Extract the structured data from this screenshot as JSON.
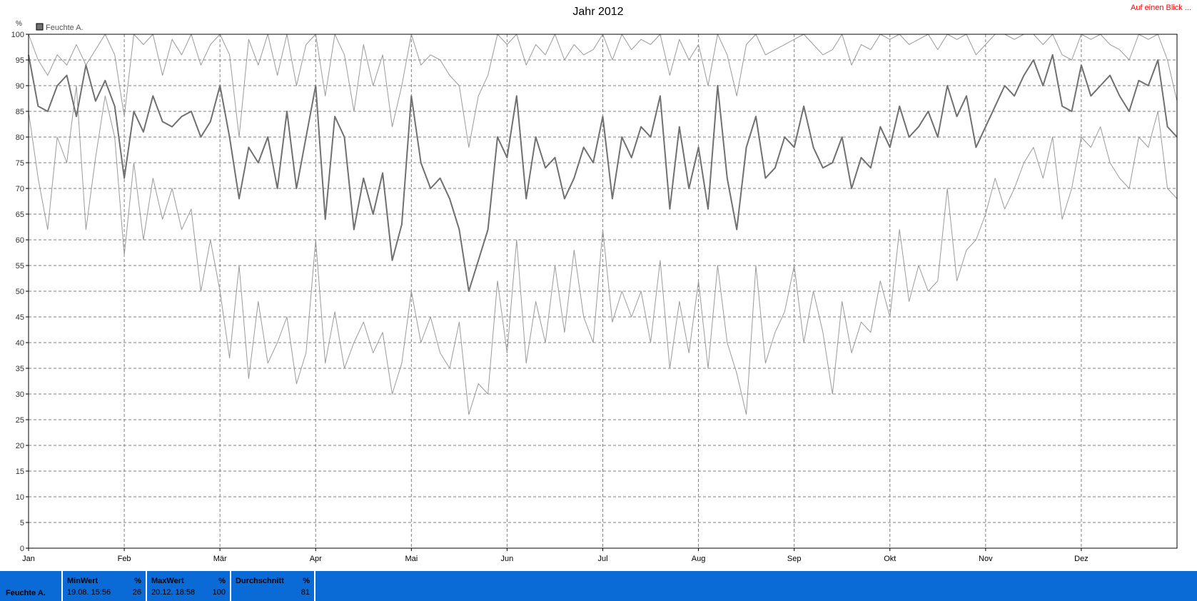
{
  "link_label": "Auf einen Blick ...",
  "stats": {
    "row_label": "Feuchte A.",
    "min": {
      "header": "MinWert",
      "unit": "%",
      "date": "19.08.  15:56",
      "value": "26"
    },
    "max": {
      "header": "MaxWert",
      "unit": "%",
      "date": "20.12.  18:58",
      "value": "100"
    },
    "avg": {
      "header": "Durchschnitt",
      "unit": "%",
      "value": "81"
    }
  },
  "chart_data": {
    "type": "line",
    "title": "Jahr 2012",
    "ylabel": "%",
    "xlabel": "",
    "ylim": [
      0,
      100
    ],
    "yticks": [
      0,
      5,
      10,
      15,
      20,
      25,
      30,
      35,
      40,
      45,
      50,
      55,
      60,
      65,
      70,
      75,
      80,
      85,
      90,
      95,
      100
    ],
    "xticks": [
      "Jan",
      "Feb",
      "Mär",
      "Apr",
      "Mai",
      "Jun",
      "Jul",
      "Aug",
      "Sep",
      "Okt",
      "Nov",
      "Dez"
    ],
    "grid": true,
    "legend": {
      "position": "top-left",
      "entries": [
        "Feuchte A."
      ]
    },
    "colors": {
      "avg": "#707070",
      "band": "#9a9a9a",
      "grid": "#7f7f7f",
      "stats_bg": "#0a6ad6",
      "link": "#ff0000"
    },
    "x_unit": "month",
    "series": [
      {
        "name": "Feuchte A.",
        "role": "avg",
        "x": [
          0,
          0.1,
          0.2,
          0.3,
          0.4,
          0.5,
          0.6,
          0.7,
          0.8,
          0.9,
          1,
          1.1,
          1.2,
          1.3,
          1.4,
          1.5,
          1.6,
          1.7,
          1.8,
          1.9,
          2,
          2.1,
          2.2,
          2.3,
          2.4,
          2.5,
          2.6,
          2.7,
          2.8,
          2.9,
          3,
          3.1,
          3.2,
          3.3,
          3.4,
          3.5,
          3.6,
          3.7,
          3.8,
          3.9,
          4,
          4.1,
          4.2,
          4.3,
          4.4,
          4.5,
          4.6,
          4.7,
          4.8,
          4.9,
          5,
          5.1,
          5.2,
          5.3,
          5.4,
          5.5,
          5.6,
          5.7,
          5.8,
          5.9,
          6,
          6.1,
          6.2,
          6.3,
          6.4,
          6.5,
          6.6,
          6.7,
          6.8,
          6.9,
          7,
          7.1,
          7.2,
          7.3,
          7.4,
          7.5,
          7.6,
          7.7,
          7.8,
          7.9,
          8,
          8.1,
          8.2,
          8.3,
          8.4,
          8.5,
          8.6,
          8.7,
          8.8,
          8.9,
          9,
          9.1,
          9.2,
          9.3,
          9.4,
          9.5,
          9.6,
          9.7,
          9.8,
          9.9,
          10,
          10.1,
          10.2,
          10.3,
          10.4,
          10.5,
          10.6,
          10.7,
          10.8,
          10.9,
          11,
          11.1,
          11.2,
          11.3,
          11.4,
          11.5,
          11.6,
          11.7,
          11.8,
          11.9,
          12
        ],
        "values": [
          96,
          86,
          85,
          90,
          92,
          84,
          94,
          87,
          91,
          86,
          72,
          85,
          81,
          88,
          83,
          82,
          84,
          85,
          80,
          83,
          90,
          80,
          68,
          78,
          75,
          80,
          70,
          85,
          70,
          80,
          90,
          64,
          84,
          80,
          62,
          72,
          65,
          73,
          56,
          63,
          88,
          75,
          70,
          72,
          68,
          62,
          50,
          56,
          62,
          80,
          76,
          88,
          68,
          80,
          74,
          76,
          68,
          72,
          78,
          75,
          84,
          68,
          80,
          76,
          82,
          80,
          88,
          66,
          82,
          70,
          78,
          66,
          90,
          72,
          62,
          78,
          84,
          72,
          74,
          80,
          78,
          86,
          78,
          74,
          75,
          80,
          70,
          76,
          74,
          82,
          78,
          86,
          80,
          82,
          85,
          80,
          90,
          84,
          88,
          78,
          82,
          86,
          90,
          88,
          92,
          95,
          90,
          96,
          86,
          85,
          94,
          88,
          90,
          92,
          88,
          85,
          91,
          90,
          95,
          82,
          80
        ]
      },
      {
        "name": "",
        "role": "max",
        "x": [
          0,
          0.1,
          0.2,
          0.3,
          0.4,
          0.5,
          0.6,
          0.7,
          0.8,
          0.9,
          1,
          1.1,
          1.2,
          1.3,
          1.4,
          1.5,
          1.6,
          1.7,
          1.8,
          1.9,
          2,
          2.1,
          2.2,
          2.3,
          2.4,
          2.5,
          2.6,
          2.7,
          2.8,
          2.9,
          3,
          3.1,
          3.2,
          3.3,
          3.4,
          3.5,
          3.6,
          3.7,
          3.8,
          3.9,
          4,
          4.1,
          4.2,
          4.3,
          4.4,
          4.5,
          4.6,
          4.7,
          4.8,
          4.9,
          5,
          5.1,
          5.2,
          5.3,
          5.4,
          5.5,
          5.6,
          5.7,
          5.8,
          5.9,
          6,
          6.1,
          6.2,
          6.3,
          6.4,
          6.5,
          6.6,
          6.7,
          6.8,
          6.9,
          7,
          7.1,
          7.2,
          7.3,
          7.4,
          7.5,
          7.6,
          7.7,
          7.8,
          7.9,
          8,
          8.1,
          8.2,
          8.3,
          8.4,
          8.5,
          8.6,
          8.7,
          8.8,
          8.9,
          9,
          9.1,
          9.2,
          9.3,
          9.4,
          9.5,
          9.6,
          9.7,
          9.8,
          9.9,
          10,
          10.1,
          10.2,
          10.3,
          10.4,
          10.5,
          10.6,
          10.7,
          10.8,
          10.9,
          11,
          11.1,
          11.2,
          11.3,
          11.4,
          11.5,
          11.6,
          11.7,
          11.8,
          11.9,
          12
        ],
        "values": [
          100,
          95,
          92,
          96,
          94,
          98,
          94,
          97,
          100,
          96,
          84,
          100,
          98,
          100,
          92,
          99,
          96,
          100,
          94,
          98,
          100,
          96,
          80,
          99,
          94,
          100,
          92,
          100,
          90,
          98,
          100,
          88,
          100,
          96,
          85,
          98,
          90,
          96,
          82,
          90,
          100,
          94,
          96,
          95,
          92,
          90,
          78,
          88,
          92,
          100,
          98,
          100,
          94,
          98,
          96,
          100,
          95,
          98,
          96,
          97,
          100,
          95,
          100,
          97,
          99,
          98,
          100,
          92,
          99,
          95,
          98,
          90,
          100,
          96,
          88,
          98,
          100,
          96,
          97,
          98,
          99,
          100,
          98,
          96,
          97,
          100,
          94,
          98,
          97,
          100,
          99,
          100,
          98,
          99,
          100,
          97,
          100,
          99,
          100,
          96,
          98,
          100,
          100,
          99,
          100,
          100,
          98,
          100,
          96,
          95,
          100,
          99,
          100,
          98,
          97,
          95,
          100,
          99,
          100,
          95,
          87
        ]
      },
      {
        "name": "",
        "role": "min",
        "x": [
          0,
          0.1,
          0.2,
          0.3,
          0.4,
          0.5,
          0.6,
          0.7,
          0.8,
          0.9,
          1,
          1.1,
          1.2,
          1.3,
          1.4,
          1.5,
          1.6,
          1.7,
          1.8,
          1.9,
          2,
          2.1,
          2.2,
          2.3,
          2.4,
          2.5,
          2.6,
          2.7,
          2.8,
          2.9,
          3,
          3.1,
          3.2,
          3.3,
          3.4,
          3.5,
          3.6,
          3.7,
          3.8,
          3.9,
          4,
          4.1,
          4.2,
          4.3,
          4.4,
          4.5,
          4.6,
          4.7,
          4.8,
          4.9,
          5,
          5.1,
          5.2,
          5.3,
          5.4,
          5.5,
          5.6,
          5.7,
          5.8,
          5.9,
          6,
          6.1,
          6.2,
          6.3,
          6.4,
          6.5,
          6.6,
          6.7,
          6.8,
          6.9,
          7,
          7.1,
          7.2,
          7.3,
          7.4,
          7.5,
          7.6,
          7.7,
          7.8,
          7.9,
          8,
          8.1,
          8.2,
          8.3,
          8.4,
          8.5,
          8.6,
          8.7,
          8.8,
          8.9,
          9,
          9.1,
          9.2,
          9.3,
          9.4,
          9.5,
          9.6,
          9.7,
          9.8,
          9.9,
          10,
          10.1,
          10.2,
          10.3,
          10.4,
          10.5,
          10.6,
          10.7,
          10.8,
          10.9,
          11,
          11.1,
          11.2,
          11.3,
          11.4,
          11.5,
          11.6,
          11.7,
          11.8,
          11.9,
          12
        ],
        "values": [
          85,
          72,
          62,
          80,
          75,
          90,
          62,
          76,
          88,
          80,
          57,
          75,
          60,
          72,
          64,
          70,
          62,
          66,
          50,
          60,
          50,
          37,
          55,
          33,
          48,
          36,
          40,
          45,
          32,
          38,
          60,
          36,
          46,
          35,
          40,
          44,
          38,
          42,
          30,
          36,
          50,
          40,
          45,
          38,
          35,
          44,
          26,
          32,
          30,
          52,
          38,
          60,
          36,
          48,
          40,
          55,
          42,
          58,
          45,
          40,
          62,
          44,
          50,
          45,
          50,
          40,
          56,
          35,
          48,
          38,
          52,
          35,
          55,
          40,
          34,
          26,
          55,
          36,
          42,
          46,
          55,
          40,
          50,
          42,
          30,
          48,
          38,
          44,
          42,
          52,
          45,
          62,
          48,
          55,
          50,
          52,
          70,
          52,
          58,
          60,
          65,
          72,
          66,
          70,
          75,
          78,
          72,
          80,
          64,
          70,
          80,
          78,
          82,
          75,
          72,
          70,
          80,
          78,
          85,
          70,
          68
        ]
      }
    ]
  }
}
